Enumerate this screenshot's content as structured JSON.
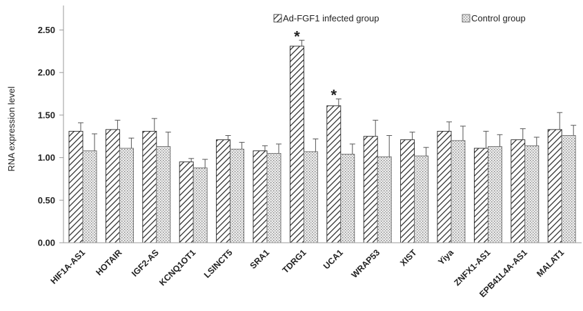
{
  "chart_data": {
    "type": "bar",
    "ylabel": "RNA expression level",
    "xlabel": "",
    "ylim": [
      0,
      2.75
    ],
    "yticks": [
      "0.00",
      "0.50",
      "1.00",
      "1.50",
      "2.00",
      "2.50"
    ],
    "grid": false,
    "legend_position": "top",
    "categories": [
      "HIF1A-AS1",
      "HOTAIR",
      "IGF2-AS",
      "KCNQ1OT1",
      "LSINCT5",
      "SRA1",
      "TDRG1",
      "UCA1",
      "WRAP53",
      "XIST",
      "Yiya",
      "ZNFX1-AS1",
      "EPB41L4A-AS1",
      "MALAT1"
    ],
    "series": [
      {
        "name": "Ad-FGF1 infected group",
        "pattern": "diagonal-hatch",
        "values": [
          1.31,
          1.33,
          1.31,
          0.95,
          1.21,
          1.08,
          2.31,
          1.61,
          1.25,
          1.21,
          1.31,
          1.11,
          1.21,
          1.33
        ],
        "errors": [
          0.1,
          0.11,
          0.15,
          0.04,
          0.05,
          0.06,
          0.07,
          0.08,
          0.19,
          0.09,
          0.11,
          0.2,
          0.13,
          0.2
        ]
      },
      {
        "name": "Control group",
        "pattern": "dotted-fill",
        "values": [
          1.08,
          1.11,
          1.13,
          0.88,
          1.1,
          1.05,
          1.07,
          1.04,
          1.01,
          1.02,
          1.2,
          1.13,
          1.14,
          1.26
        ],
        "errors": [
          0.2,
          0.12,
          0.17,
          0.1,
          0.08,
          0.11,
          0.15,
          0.12,
          0.25,
          0.1,
          0.17,
          0.14,
          0.1,
          0.12
        ]
      }
    ],
    "annotations": [
      {
        "text": "*",
        "category": "TDRG1",
        "series": 0
      },
      {
        "text": "*",
        "category": "UCA1",
        "series": 0
      }
    ]
  }
}
